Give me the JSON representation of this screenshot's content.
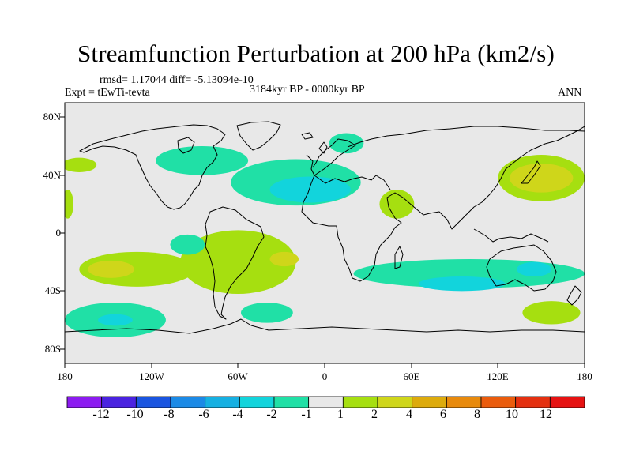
{
  "title": "Streamfunction Perturbation at 200 hPa (km2/s)",
  "stats_line": "rmsd= 1.17044 diff= -5.13094e-10",
  "experiment": "Expt = tEwTi-tevta",
  "period": "3184kyr BP - 0000kyr BP",
  "season": "ANN",
  "x_ticks": [
    "180",
    "120W",
    "60W",
    "0",
    "60E",
    "120E",
    "180"
  ],
  "y_ticks": [
    "80N",
    "40N",
    "0",
    "40S",
    "80S"
  ],
  "colorbar": {
    "labels": [
      "-12",
      "-10",
      "-8",
      "-6",
      "-4",
      "-2",
      "-1",
      "1",
      "2",
      "4",
      "6",
      "8",
      "10",
      "12"
    ],
    "colors": [
      "#8c1bf0",
      "#4a23e0",
      "#1a55e0",
      "#1b8ae6",
      "#16b0e2",
      "#12d4dc",
      "#20e0a6",
      "#e8e8e8",
      "#a6df10",
      "#cfd61a",
      "#ddab0c",
      "#e88a0c",
      "#ea5c0d",
      "#e43010",
      "#e61212"
    ]
  },
  "chart_data": {
    "type": "contour-map",
    "variable": "Streamfunction Perturbation at 200 hPa",
    "units": "km2/s",
    "levels": [
      -12,
      -10,
      -8,
      -6,
      -4,
      -2,
      -1,
      1,
      2,
      4,
      6,
      8,
      10,
      12
    ],
    "xlim": [
      -180,
      180
    ],
    "ylim": [
      -90,
      90
    ],
    "blobs": [
      {
        "name": "north-atlantic-africa-low",
        "lon": -20,
        "lat": 35,
        "rlon": 45,
        "rlat": 16,
        "value": -1.5
      },
      {
        "name": "north-atlantic-low-core",
        "lon": -10,
        "lat": 30,
        "rlon": 28,
        "rlat": 9,
        "value": -2.5
      },
      {
        "name": "north-america-low",
        "lon": -85,
        "lat": 50,
        "rlon": 32,
        "rlat": 10,
        "value": -1.5
      },
      {
        "name": "europe-low",
        "lon": 15,
        "lat": 62,
        "rlon": 12,
        "rlat": 7,
        "value": -1.5
      },
      {
        "name": "east-pacific-west-high",
        "lon": -170,
        "lat": 47,
        "rlon": 12,
        "rlat": 5,
        "value": 1.5
      },
      {
        "name": "dateline-high-north",
        "lon": -178,
        "lat": 20,
        "rlon": 4,
        "rlat": 10,
        "value": 1.5
      },
      {
        "name": "northwest-pacific-high",
        "lon": 150,
        "lat": 38,
        "rlon": 30,
        "rlat": 16,
        "value": 1.5
      },
      {
        "name": "northwest-pacific-high-core",
        "lon": 150,
        "lat": 38,
        "rlon": 22,
        "rlat": 10,
        "value": 2.5
      },
      {
        "name": "arabia-high",
        "lon": 50,
        "lat": 20,
        "rlon": 12,
        "rlat": 10,
        "value": 1.5
      },
      {
        "name": "south-pacific-high",
        "lon": -130,
        "lat": -25,
        "rlon": 40,
        "rlat": 12,
        "value": 1.5
      },
      {
        "name": "south-pacific-high-core",
        "lon": -148,
        "lat": -25,
        "rlon": 16,
        "rlat": 6,
        "value": 2.5
      },
      {
        "name": "south-america-high",
        "lon": -60,
        "lat": -20,
        "rlon": 40,
        "rlat": 22,
        "value": 1.5
      },
      {
        "name": "south-atlantic-high-core",
        "lon": -28,
        "lat": -18,
        "rlon": 10,
        "rlat": 5,
        "value": 2.5
      },
      {
        "name": "southeast-pacific-low",
        "lon": -95,
        "lat": -8,
        "rlon": 12,
        "rlat": 7,
        "value": -1.5
      },
      {
        "name": "southern-ocean-low-pacific",
        "lon": -145,
        "lat": -60,
        "rlon": 35,
        "rlat": 12,
        "value": -1.5
      },
      {
        "name": "southern-ocean-low-pacific-core",
        "lon": -145,
        "lat": -60,
        "rlon": 12,
        "rlat": 4,
        "value": -2.5
      },
      {
        "name": "south-atlantic-low",
        "lon": -40,
        "lat": -55,
        "rlon": 18,
        "rlat": 7,
        "value": -1.5
      },
      {
        "name": "indian-ocean-low-belt",
        "lon": 100,
        "lat": -28,
        "rlon": 80,
        "rlat": 10,
        "value": -1.5
      },
      {
        "name": "indian-ocean-low-core",
        "lon": 95,
        "lat": -35,
        "rlon": 30,
        "rlat": 5,
        "value": -2.5
      },
      {
        "name": "australia-low-core",
        "lon": 145,
        "lat": -25,
        "rlon": 12,
        "rlat": 5,
        "value": -2.5
      },
      {
        "name": "southwest-pacific-high",
        "lon": 157,
        "lat": -55,
        "rlon": 20,
        "rlat": 8,
        "value": 1.5
      }
    ]
  }
}
